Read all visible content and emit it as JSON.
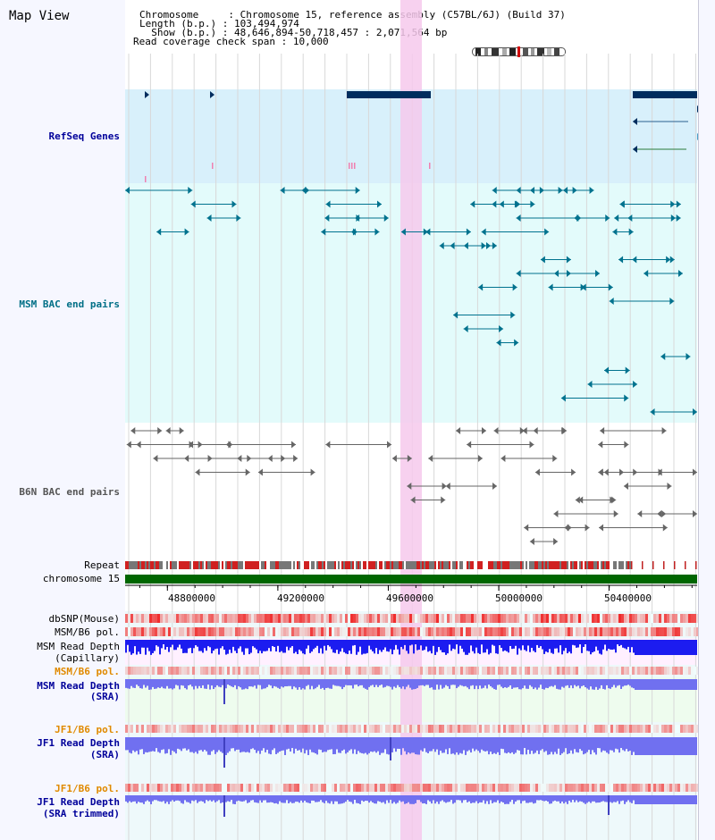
{
  "view": {
    "title": "Map View",
    "info": [
      {
        "key": "Chromosome",
        "value": "Chromosome 15, reference assembly (C57BL/6J) (Build 37)"
      },
      {
        "key": "Length (b.p.)",
        "value": "103,494,974"
      },
      {
        "key": "Show (b.p.)",
        "value": "48,646,894-50,718,457 : 2,071,564 bp"
      },
      {
        "key": "Read coverage check span",
        "value": "10,000"
      }
    ]
  },
  "tracks": {
    "refseq": "RefSeq Genes",
    "msm_bac": "MSM BAC end pairs",
    "b6n_bac": "B6N BAC end pairs",
    "repeat": "Repeat",
    "chromosome": "chromosome 15",
    "dbsnp": "dbSNP(Mouse)",
    "msm_b6_pol_1": "MSM/B6 pol.",
    "msm_read_depth_cap_1": "MSM Read Depth",
    "msm_read_depth_cap_2": "(Capillary)",
    "msm_b6_pol_2": "MSM/B6 pol.",
    "msm_read_depth_sra_1": "MSM Read Depth",
    "msm_read_depth_sra_2": "(SRA)",
    "jf1_b6_pol_1": "JF1/B6 pol.",
    "jf1_read_depth_1": "JF1 Read Depth",
    "jf1_read_depth_2": "(SRA)",
    "jf1_b6_pol_2": "JF1/B6 pol.",
    "jf1_read_depth_trim_1": "JF1 Read Depth",
    "jf1_read_depth_trim_2": "(SRA trimmed)"
  },
  "axis": {
    "ticks": [
      "48800000",
      "49200000",
      "49600000",
      "50000000",
      "50400000"
    ],
    "tick_values": [
      48800000,
      49200000,
      49600000,
      50000000,
      50400000
    ],
    "range": [
      48646894,
      50718457
    ]
  },
  "colors": {
    "refseq_bg": "#d8f0fb",
    "bac_bg": "#e3fbfb",
    "gene": "#002d5e",
    "msm": "#00728e",
    "b6n": "#666666",
    "highlight": "#f6c9ec",
    "chrom_bar": "#006600",
    "depth_blue": "#1c1cf0",
    "depth_light": "#7070f0"
  },
  "icons": {
    "ideogram": "chromosome-ideogram-icon"
  }
}
